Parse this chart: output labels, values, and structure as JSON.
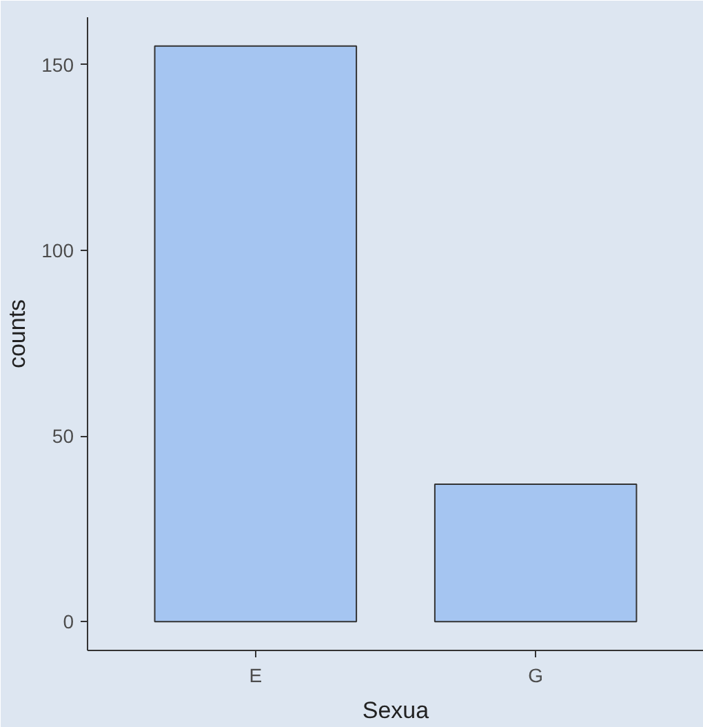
{
  "chart_data": {
    "type": "bar",
    "xlabel": "Sexua",
    "ylabel": "counts",
    "categories": [
      "E",
      "G"
    ],
    "values": [
      155,
      37
    ],
    "color": "#a5c5f1",
    "ylim": [
      -7.75,
      162.75
    ],
    "yticks": [
      0,
      50,
      100,
      150
    ],
    "grid": false
  }
}
